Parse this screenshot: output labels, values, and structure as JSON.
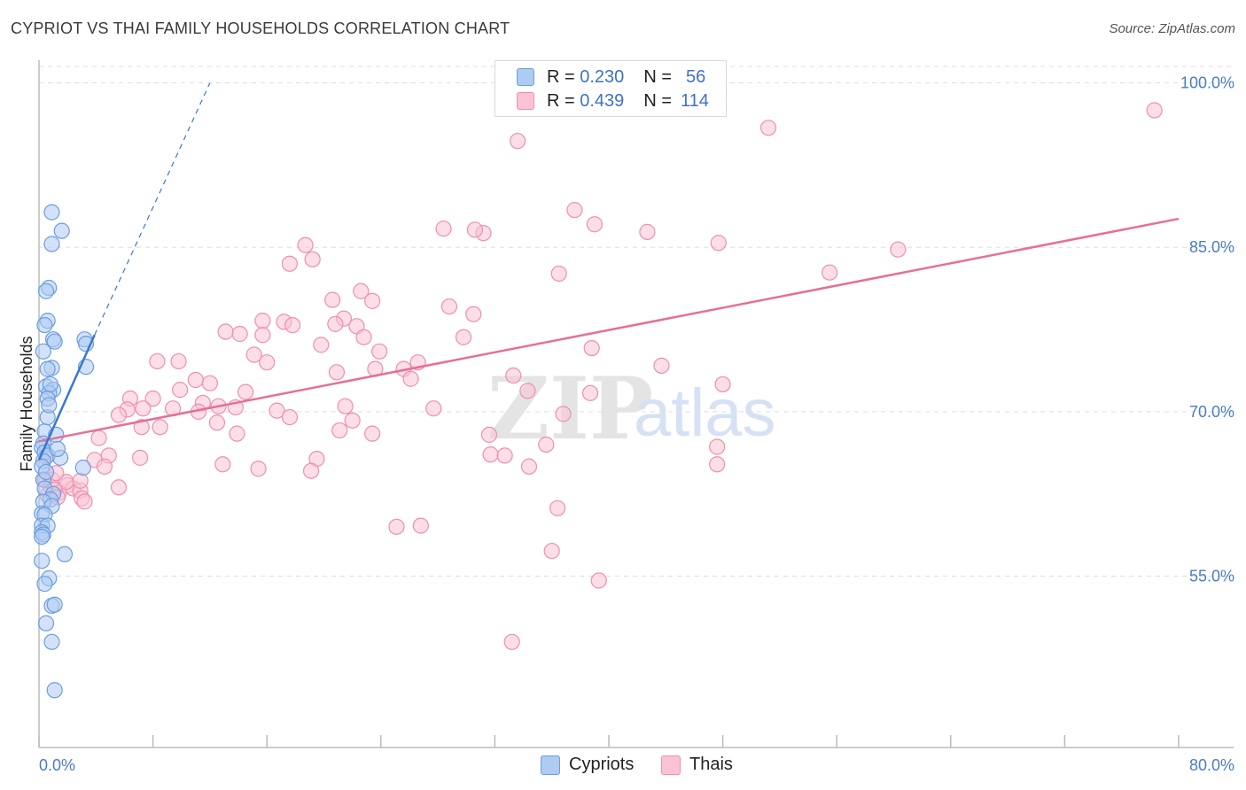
{
  "header": {
    "title": "CYPRIOT VS THAI FAMILY HOUSEHOLDS CORRELATION CHART",
    "source": "Source: ZipAtlas.com"
  },
  "legend": {
    "cypriots": {
      "r_label": "R =",
      "r_value": "0.230",
      "n_label": "N =",
      "n_value": "56"
    },
    "thais": {
      "r_label": "R =",
      "r_value": "0.439",
      "n_label": "N =",
      "n_value": "114"
    }
  },
  "bottom_legend": {
    "cypriots": "Cypriots",
    "thais": "Thais"
  },
  "watermark": {
    "zip": "ZIP",
    "atlas": "atlas"
  },
  "colors": {
    "blue_fill": "#aecbf2",
    "blue_stroke": "#6b9ee0",
    "blue_line": "#3a78d0",
    "pink_fill": "#f9c3d3",
    "pink_stroke": "#ee8fae",
    "pink_line": "#e66f98",
    "grid": "#dddddd",
    "axis_text": "#4a7cc9"
  },
  "chart_data": {
    "type": "scatter",
    "title": "CYPRIOT VS THAI FAMILY HOUSEHOLDS CORRELATION CHART",
    "xlabel": "",
    "ylabel": "Family Households",
    "xlim": [
      0,
      80
    ],
    "ylim": [
      40.5,
      101.5
    ],
    "x_tick_labels": [
      {
        "value": 0,
        "label": "0.0%"
      },
      {
        "value": 80,
        "label": "80.0%"
      }
    ],
    "y_tick_labels": [
      {
        "value": 100,
        "label": "100.0%"
      },
      {
        "value": 85,
        "label": "85.0%"
      },
      {
        "value": 70,
        "label": "70.0%"
      },
      {
        "value": 55,
        "label": "55.0%"
      }
    ],
    "x_minor_ticks": [
      0,
      8,
      16,
      24,
      32,
      40,
      48,
      56,
      64,
      72,
      80
    ],
    "series": [
      {
        "name": "Cypriots",
        "color": "#6b9ee0",
        "points": [
          [
            0.9,
            88.2
          ],
          [
            0.9,
            85.3
          ],
          [
            1.6,
            86.5
          ],
          [
            0.7,
            81.3
          ],
          [
            0.5,
            81.0
          ],
          [
            0.6,
            78.3
          ],
          [
            0.4,
            77.9
          ],
          [
            1.0,
            76.6
          ],
          [
            1.1,
            76.4
          ],
          [
            3.2,
            76.6
          ],
          [
            3.3,
            76.2
          ],
          [
            0.3,
            75.5
          ],
          [
            0.9,
            74.0
          ],
          [
            0.6,
            73.9
          ],
          [
            3.3,
            74.1
          ],
          [
            0.5,
            72.3
          ],
          [
            1.0,
            72.0
          ],
          [
            0.7,
            71.7
          ],
          [
            0.6,
            71.2
          ],
          [
            0.4,
            68.2
          ],
          [
            1.2,
            67.9
          ],
          [
            0.3,
            67.1
          ],
          [
            0.2,
            66.7
          ],
          [
            0.4,
            66.3
          ],
          [
            0.6,
            66.0
          ],
          [
            1.5,
            65.8
          ],
          [
            0.3,
            65.5
          ],
          [
            0.2,
            65.0
          ],
          [
            3.1,
            64.9
          ],
          [
            0.3,
            63.8
          ],
          [
            0.4,
            63.0
          ],
          [
            1.0,
            62.5
          ],
          [
            0.8,
            62.0
          ],
          [
            0.3,
            61.8
          ],
          [
            0.9,
            61.4
          ],
          [
            0.2,
            60.7
          ],
          [
            0.4,
            60.6
          ],
          [
            0.2,
            59.6
          ],
          [
            0.6,
            59.6
          ],
          [
            0.2,
            59.0
          ],
          [
            0.3,
            58.8
          ],
          [
            0.2,
            58.6
          ],
          [
            1.8,
            57.0
          ],
          [
            0.2,
            56.4
          ],
          [
            0.7,
            54.8
          ],
          [
            0.4,
            54.3
          ],
          [
            0.9,
            52.3
          ],
          [
            1.1,
            52.4
          ],
          [
            0.5,
            50.7
          ],
          [
            0.9,
            49.0
          ],
          [
            1.1,
            44.6
          ],
          [
            0.5,
            64.5
          ],
          [
            0.6,
            69.5
          ],
          [
            0.7,
            70.6
          ],
          [
            0.8,
            72.5
          ],
          [
            1.3,
            66.6
          ]
        ],
        "trend": {
          "from": [
            0.0,
            65.6
          ],
          "to": [
            3.9,
            77.0
          ],
          "dashed_to": [
            12.0,
            100.0
          ]
        }
      },
      {
        "name": "Thais",
        "color": "#ee8fae",
        "points": [
          [
            78.3,
            97.5
          ],
          [
            33.6,
            94.7
          ],
          [
            51.2,
            95.9
          ],
          [
            37.6,
            88.4
          ],
          [
            39.0,
            87.1
          ],
          [
            31.2,
            86.3
          ],
          [
            28.4,
            86.7
          ],
          [
            30.6,
            86.6
          ],
          [
            42.7,
            86.4
          ],
          [
            47.7,
            85.4
          ],
          [
            60.3,
            84.8
          ],
          [
            18.7,
            85.2
          ],
          [
            19.2,
            83.9
          ],
          [
            17.6,
            83.5
          ],
          [
            36.5,
            82.6
          ],
          [
            55.5,
            82.7
          ],
          [
            22.6,
            81.0
          ],
          [
            23.4,
            80.1
          ],
          [
            20.6,
            80.2
          ],
          [
            28.8,
            79.6
          ],
          [
            30.5,
            78.9
          ],
          [
            21.4,
            78.5
          ],
          [
            15.7,
            78.3
          ],
          [
            17.2,
            78.2
          ],
          [
            17.8,
            77.9
          ],
          [
            20.8,
            78.0
          ],
          [
            13.1,
            77.3
          ],
          [
            14.1,
            77.1
          ],
          [
            22.3,
            77.8
          ],
          [
            22.8,
            76.8
          ],
          [
            15.7,
            77.0
          ],
          [
            29.8,
            76.8
          ],
          [
            19.8,
            76.1
          ],
          [
            38.8,
            75.8
          ],
          [
            23.9,
            75.5
          ],
          [
            15.1,
            75.2
          ],
          [
            8.3,
            74.6
          ],
          [
            9.8,
            74.6
          ],
          [
            16.0,
            74.5
          ],
          [
            26.6,
            74.5
          ],
          [
            20.9,
            73.6
          ],
          [
            23.6,
            73.9
          ],
          [
            25.6,
            73.9
          ],
          [
            43.7,
            74.2
          ],
          [
            33.3,
            73.3
          ],
          [
            26.1,
            73.0
          ],
          [
            11.0,
            72.9
          ],
          [
            12.0,
            72.6
          ],
          [
            9.9,
            72.0
          ],
          [
            14.5,
            71.8
          ],
          [
            34.3,
            71.9
          ],
          [
            38.7,
            71.7
          ],
          [
            48.0,
            72.5
          ],
          [
            6.4,
            71.2
          ],
          [
            8.0,
            71.2
          ],
          [
            11.5,
            70.8
          ],
          [
            6.2,
            70.2
          ],
          [
            7.3,
            70.3
          ],
          [
            9.4,
            70.3
          ],
          [
            12.6,
            70.5
          ],
          [
            13.8,
            70.4
          ],
          [
            16.7,
            70.1
          ],
          [
            21.5,
            70.5
          ],
          [
            27.7,
            70.3
          ],
          [
            36.8,
            69.8
          ],
          [
            11.2,
            70.0
          ],
          [
            5.6,
            69.7
          ],
          [
            17.6,
            69.5
          ],
          [
            22.0,
            69.2
          ],
          [
            7.2,
            68.6
          ],
          [
            8.5,
            68.6
          ],
          [
            12.5,
            69.0
          ],
          [
            4.2,
            67.6
          ],
          [
            13.9,
            68.0
          ],
          [
            21.1,
            68.3
          ],
          [
            31.6,
            67.9
          ],
          [
            35.6,
            67.0
          ],
          [
            47.6,
            66.8
          ],
          [
            4.9,
            66.0
          ],
          [
            3.9,
            65.6
          ],
          [
            7.1,
            65.8
          ],
          [
            19.5,
            65.7
          ],
          [
            31.7,
            66.1
          ],
          [
            32.7,
            66.0
          ],
          [
            34.4,
            65.0
          ],
          [
            47.6,
            65.2
          ],
          [
            4.6,
            65.0
          ],
          [
            12.9,
            65.2
          ],
          [
            15.4,
            64.8
          ],
          [
            19.1,
            64.6
          ],
          [
            0.4,
            63.8
          ],
          [
            5.6,
            63.1
          ],
          [
            0.8,
            63.2
          ],
          [
            2.0,
            63.3
          ],
          [
            1.4,
            62.6
          ],
          [
            2.4,
            63.0
          ],
          [
            2.9,
            62.8
          ],
          [
            3.0,
            62.1
          ],
          [
            3.2,
            61.8
          ],
          [
            0.6,
            62.4
          ],
          [
            1.9,
            63.6
          ],
          [
            0.9,
            63.8
          ],
          [
            2.9,
            63.7
          ],
          [
            1.2,
            64.4
          ],
          [
            36.4,
            61.2
          ],
          [
            25.1,
            59.5
          ],
          [
            26.8,
            59.6
          ],
          [
            36.0,
            57.3
          ],
          [
            39.3,
            54.6
          ],
          [
            33.2,
            49.0
          ],
          [
            0.5,
            65.9
          ],
          [
            1.1,
            62.9
          ],
          [
            1.3,
            62.2
          ],
          [
            23.4,
            68.0
          ]
        ],
        "trend": {
          "from": [
            0.0,
            67.3
          ],
          "to": [
            80.0,
            87.6
          ]
        }
      }
    ]
  }
}
